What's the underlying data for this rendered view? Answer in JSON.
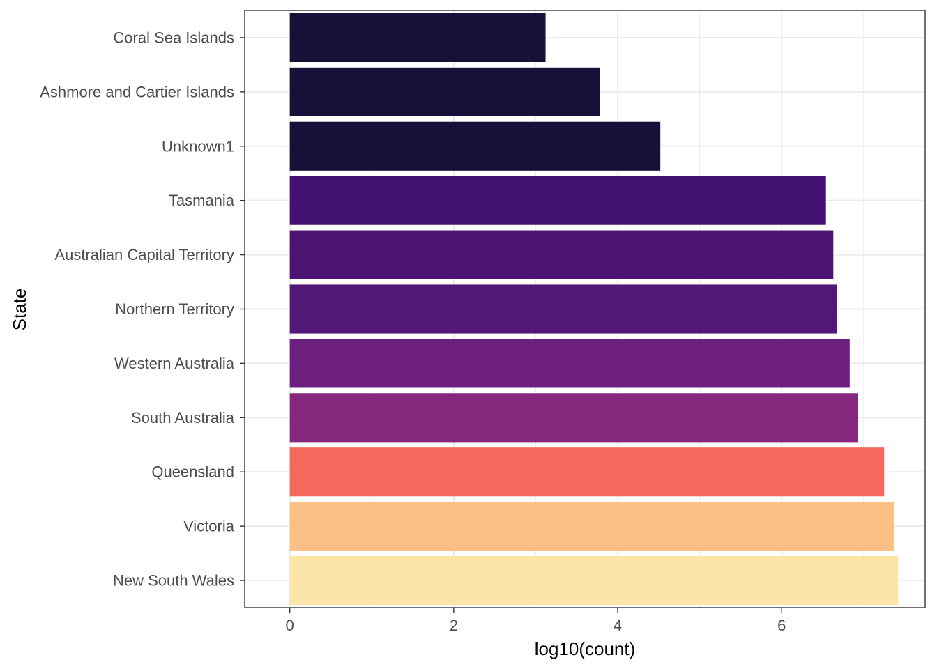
{
  "chart_data": {
    "type": "bar",
    "orientation": "horizontal",
    "title": "",
    "xlabel": "log10(count)",
    "ylabel": "State",
    "xlim": [
      -0.55,
      7.75
    ],
    "x_ticks": [
      0,
      2,
      4,
      6
    ],
    "x_tick_labels": [
      "0",
      "2",
      "4",
      "6"
    ],
    "grid": true,
    "categories": [
      "Coral Sea Islands",
      "Ashmore and Cartier Islands",
      "Unknown1",
      "Tasmania",
      "Australian Capital Territory",
      "Northern Territory",
      "Western Australia",
      "South Australia",
      "Queensland",
      "Victoria",
      "New South Wales"
    ],
    "values": [
      3.12,
      3.78,
      4.52,
      6.54,
      6.63,
      6.67,
      6.83,
      6.93,
      7.25,
      7.37,
      7.42
    ],
    "colors": [
      "#17113a",
      "#17113a",
      "#17113a",
      "#431272",
      "#4d1474",
      "#531778",
      "#6d1f80",
      "#85287d",
      "#f3695c",
      "#fcc086",
      "#fde4a7"
    ]
  }
}
